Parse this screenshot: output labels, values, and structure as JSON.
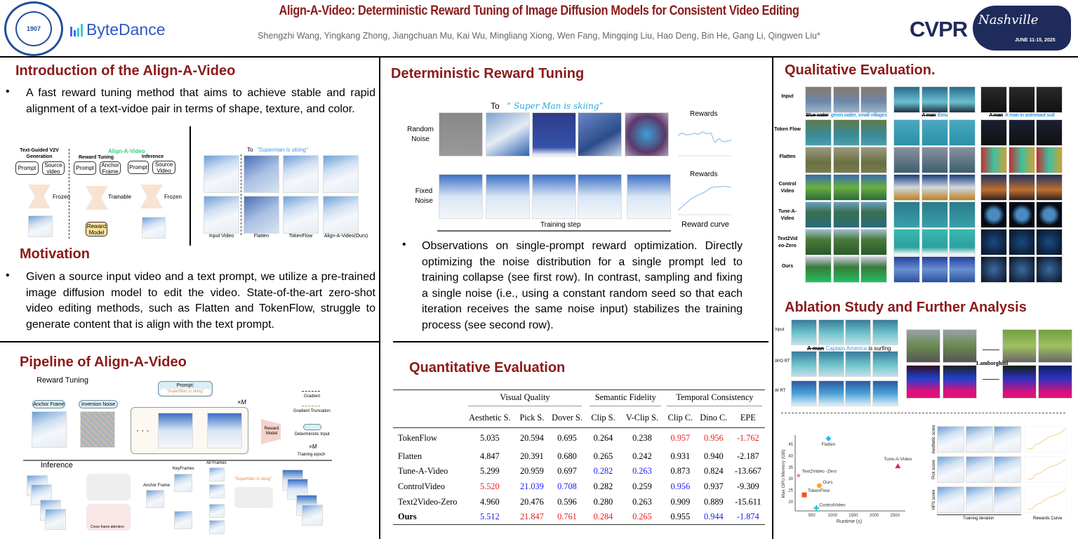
{
  "header": {
    "title": "Align-A-Video: Deterministic Reward Tuning of Image Diffusion Models for Consistent Video Editing",
    "authors": "Shengzhi Wang, Yingkang Zhong, Jiangchuan Mu, Kai Wu, Mingliang Xiong, Wen Fang, Mingqing Liu, Hao Deng, Bin He, Gang Li, Qingwen Liu*",
    "logo_left": "Tongji University 1907",
    "logo_bytedance": "ByteDance",
    "logo_cvpr": "CVPR",
    "logo_cvpr_city": "Nashville",
    "logo_cvpr_date": "JUNE 11-15, 2025"
  },
  "intro": {
    "heading": "Introduction of the Align-A-Video",
    "bullet": "A fast reward tuning method that aims to achieve stable and rapid alignment of  a text-vidoe pair in terms of shape, texture, and color.",
    "diagram": {
      "col1_title": "Text-Guided V2V Generation",
      "prompt": "Prompt",
      "source_video": "Source video",
      "frozen": "Frozen",
      "brand": "Align-A-Video",
      "reward_tuning": "Reward Tuning",
      "anchor_frame": "Anchor Frame",
      "trainable": "Trainable",
      "reward_model": "Reward Model",
      "inference": "Inference",
      "source_video2": "Source Video"
    },
    "comparison": {
      "to": "To",
      "prompt": "“Superman is skiing”",
      "labels": [
        "Input Video",
        "Flatten",
        "TokenFlow",
        "Align-A-Video(Ours)"
      ]
    }
  },
  "motivation": {
    "heading": "Motivation",
    "bullet": "Given a source input video and a text prompt, we utilize a pre-trained image diffusion model to edit the video. State-of-the-art zero-shot video editing methods, such as Flatten and TokenFlow, struggle to generate content that is align with the text prompt."
  },
  "pipeline": {
    "heading": "Pipeline of Align-A-Video",
    "reward_tuning": "Reward Tuning",
    "prompt_label": "Prompt:",
    "prompt_text": "“SuperMan is sking”",
    "anchor_frame": "Anchor Frame",
    "inversion_noise": "Inversion Noise",
    "times_m": "×M",
    "reward_model": "Reward Model",
    "legend": {
      "gradient": "Gradient",
      "truncation": "Gradient Truncation",
      "deterministic": "Deterministic Input",
      "times_m": "×M",
      "epoch": "Training epoch"
    },
    "inference": "Inference",
    "keyframes": "KeyFrames",
    "all_frames": "All Frames",
    "anchor_frame2": "Anchor Frame",
    "prompt_text2": "“SuperMan is sking”",
    "cross_attention": "Cross frame attention"
  },
  "deterministic": {
    "heading": "Deterministic Reward Tuning",
    "to": "To",
    "prompt": "“ Super Man is skiing”",
    "random_noise": "Random Noise",
    "fixed_noise": "Fixed Noise",
    "rewards1": "Rewards",
    "rewards2": "Rewards",
    "training_step": "Training step",
    "reward_curve": "Reward curve",
    "random_rewards": [
      0.62,
      0.7,
      0.64,
      0.65,
      0.69,
      0.66,
      0.74,
      0.67,
      0.7,
      0.4,
      0.52,
      0.42,
      0.44,
      0.48
    ],
    "fixed_rewards": [
      0.1,
      0.3,
      0.5,
      0.62,
      0.72,
      0.88,
      0.9,
      0.92,
      0.88
    ],
    "bullet": "Observations on single-prompt reward optimization. Directly optimizing the noise distribution for a single prompt led to training collapse (see first row). In contrast, sampling and fixing a single noise (i.e., using a constant random seed so that each iteration receives the same noise input) stabilizes the training process (see second row)."
  },
  "quantitative": {
    "heading": "Quantitative Evaluation",
    "groups": [
      "Visual Quality",
      "Semantic Fidelity",
      "Temporal Consistency"
    ],
    "columns": [
      "Aesthetic S.",
      "Pick S.",
      "Dover S.",
      "Clip S.",
      "V-Clip S.",
      "Clip C.",
      "Dino C.",
      "EPE"
    ],
    "rows": [
      {
        "method": "TokenFlow",
        "values": [
          "5.035",
          "20.594",
          "0.695",
          "0.264",
          "0.238",
          "0.957",
          "0.956",
          "-1.762"
        ],
        "marks": [
          "",
          "",
          "",
          "",
          "",
          "r",
          "r",
          "r"
        ]
      },
      {
        "method": "Flatten",
        "values": [
          "4.847",
          "20.391",
          "0.680",
          "0.265",
          "0.242",
          "0.931",
          "0.940",
          "-2.187"
        ],
        "marks": [
          "",
          "",
          "",
          "",
          "",
          "",
          "",
          ""
        ]
      },
      {
        "method": "Tune-A-Video",
        "values": [
          "5.299",
          "20.959",
          "0.697",
          "0.282",
          "0.263",
          "0.873",
          "0.824",
          "-13.667"
        ],
        "marks": [
          "",
          "",
          "",
          "b",
          "b",
          "",
          "",
          ""
        ]
      },
      {
        "method": "ControlVideo",
        "values": [
          "5.520",
          "21.039",
          "0.708",
          "0.282",
          "0.259",
          "0.956",
          "0.937",
          "-9.309"
        ],
        "marks": [
          "r",
          "b",
          "b",
          "",
          "",
          "b",
          "",
          ""
        ]
      },
      {
        "method": "Text2Video-Zero",
        "values": [
          "4.960",
          "20.476",
          "0.596",
          "0.280",
          "0.263",
          "0.909",
          "0.889",
          "-15.611"
        ],
        "marks": [
          "",
          "",
          "",
          "",
          "",
          "",
          "",
          ""
        ]
      },
      {
        "method": "Ours",
        "values": [
          "5.512",
          "21.847",
          "0.761",
          "0.284",
          "0.265",
          "0.955",
          "0.944",
          "-1.874"
        ],
        "marks": [
          "b",
          "r",
          "r",
          "r",
          "r",
          "",
          "b",
          "b"
        ]
      }
    ],
    "best_color": "#ee1c1c",
    "second_color": "#1a1aff"
  },
  "qualitative": {
    "heading": "Qualitative Evaluation.",
    "row_labels": [
      "Input",
      "Token Flow",
      "Flatten",
      "Control Video",
      "Tune-A-Video",
      "Text2Vid eo-Zero",
      "Ours"
    ],
    "captions": [
      {
        "old": "Blue water",
        "new": "green water, small villages"
      },
      {
        "old": "A man",
        "new": "Emu"
      },
      {
        "old": "A man",
        "new": "A man in astronaut suit"
      }
    ]
  },
  "ablation": {
    "heading": "Ablation Study and Further Analysis",
    "row_labels": [
      "Input",
      "W/O RT",
      "W RT"
    ],
    "caption_old": "A man",
    "caption_new": "Captain America",
    "caption_rest": "is surfing",
    "car_prompt": "Lamborghini",
    "score_labels": [
      "Aesthetic score",
      "Pick score",
      "HPS score"
    ],
    "training_iteration": "Training iteration",
    "rewards_curve": "Rewards Curve"
  },
  "chart_data": {
    "type": "scatter",
    "xlabel": "Runtime (s)",
    "ylabel": "Max GPU Memory (GB)",
    "xticks": [
      500,
      1000,
      1500,
      2000,
      2500
    ],
    "yticks": [
      20,
      25,
      30,
      35,
      40,
      45
    ],
    "xlim": [
      100,
      2750
    ],
    "ylim": [
      16,
      49
    ],
    "points": [
      {
        "name": "Flatten",
        "x": 900,
        "y": 47.5,
        "color": "#29b6f6",
        "shape": "diamond"
      },
      {
        "name": "Tune-A-Video",
        "x": 2570,
        "y": 35.5,
        "color": "#e91e63",
        "shape": "triangle"
      },
      {
        "name": "Text2Video -Zero",
        "x": 180,
        "y": 31.5,
        "color": "#f06292",
        "shape": "star"
      },
      {
        "name": "Ours",
        "x": 680,
        "y": 27,
        "color": "#ffa726",
        "shape": "circle"
      },
      {
        "name": "TokenFlow",
        "x": 320,
        "y": 23,
        "color": "#f4511e",
        "shape": "square"
      },
      {
        "name": "ControlVideo",
        "x": 610,
        "y": 17,
        "color": "#26c6da",
        "shape": "plus"
      }
    ]
  }
}
